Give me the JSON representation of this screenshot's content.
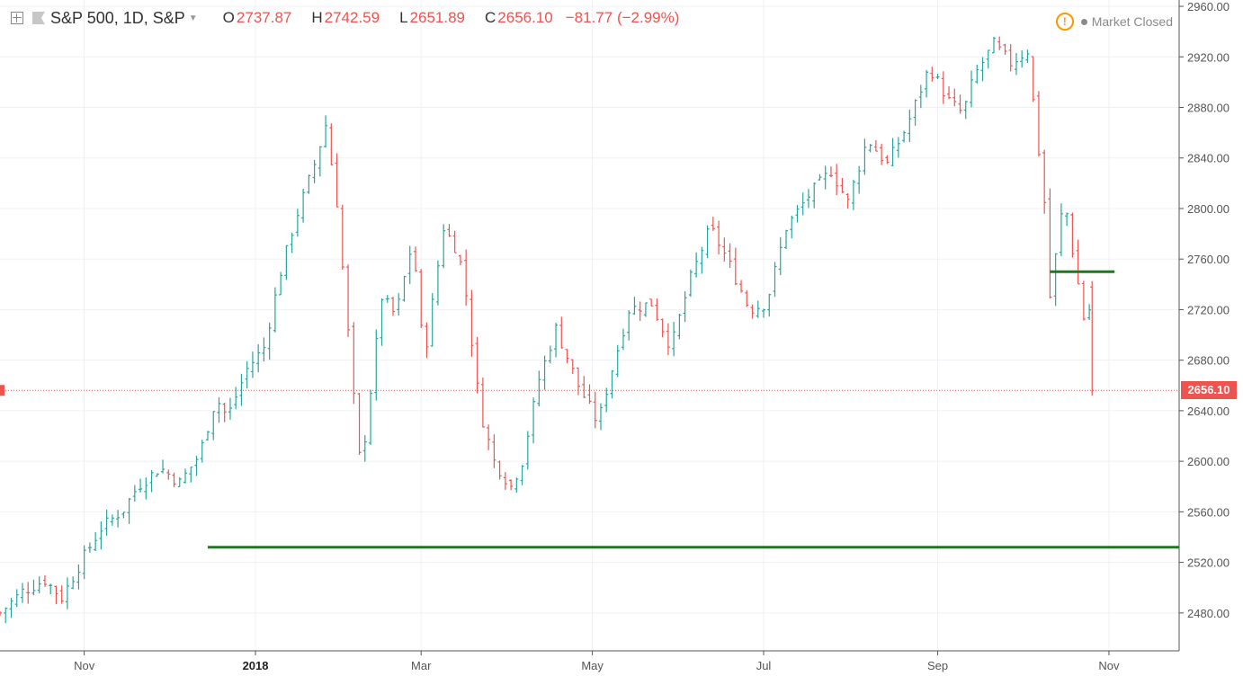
{
  "header": {
    "symbol": "S&P 500, 1D, S&P",
    "o_label": "O",
    "o_value": "2737.87",
    "h_label": "H",
    "h_value": "2742.59",
    "l_label": "L",
    "l_value": "2651.89",
    "c_label": "C",
    "c_value": "2656.10",
    "change": "−81.77 (−2.99%)",
    "market_status": "Market Closed",
    "warning_symbol": "!"
  },
  "last_price_label": "2656.10",
  "colors": {
    "up": "#26a69a",
    "down": "#ef5350",
    "support": "#1b7a1b",
    "grid": "#eef1f4",
    "axis": "#555555"
  },
  "chart_data": {
    "type": "candlestick",
    "title": "S&P 500, 1D, S&P",
    "ylim": [
      2450,
      2965
    ],
    "yticks": [
      "2480.00",
      "2520.00",
      "2560.00",
      "2600.00",
      "2640.00",
      "2680.00",
      "2720.00",
      "2760.00",
      "2800.00",
      "2840.00",
      "2880.00",
      "2920.00",
      "2960.00"
    ],
    "xlim": [
      "2017-10-02",
      "2018-11-26"
    ],
    "xticks": [
      {
        "date": "2017-11-01",
        "label": "Nov"
      },
      {
        "date": "2018-01-01",
        "label": "2018"
      },
      {
        "date": "2018-03-01",
        "label": "Mar"
      },
      {
        "date": "2018-05-01",
        "label": "May"
      },
      {
        "date": "2018-07-01",
        "label": "Jul"
      },
      {
        "date": "2018-09-01",
        "label": "Sep"
      },
      {
        "date": "2018-11-01",
        "label": "Nov"
      }
    ],
    "close_path": [
      [
        "2017-10-02",
        2480
      ],
      [
        "2017-10-10",
        2497
      ],
      [
        "2017-10-18",
        2506
      ],
      [
        "2017-10-24",
        2492
      ],
      [
        "2017-11-01",
        2525
      ],
      [
        "2017-11-07",
        2547
      ],
      [
        "2017-11-15",
        2562
      ],
      [
        "2017-11-20",
        2580
      ],
      [
        "2017-11-28",
        2595
      ],
      [
        "2017-12-05",
        2583
      ],
      [
        "2017-12-12",
        2605
      ],
      [
        "2017-12-18",
        2650
      ],
      [
        "2017-12-22",
        2635
      ],
      [
        "2017-12-29",
        2673
      ],
      [
        "2018-01-04",
        2690
      ],
      [
        "2018-01-10",
        2750
      ],
      [
        "2018-01-15",
        2790
      ],
      [
        "2018-01-22",
        2835
      ],
      [
        "2018-01-26",
        2866
      ],
      [
        "2018-01-30",
        2805
      ],
      [
        "2018-02-05",
        2650
      ],
      [
        "2018-02-08",
        2581
      ],
      [
        "2018-02-09",
        2619
      ],
      [
        "2018-02-15",
        2730
      ],
      [
        "2018-02-20",
        2715
      ],
      [
        "2018-02-26",
        2775
      ],
      [
        "2018-03-02",
        2680
      ],
      [
        "2018-03-09",
        2785
      ],
      [
        "2018-03-13",
        2770
      ],
      [
        "2018-03-16",
        2750
      ],
      [
        "2018-03-22",
        2640
      ],
      [
        "2018-03-27",
        2600
      ],
      [
        "2018-04-02",
        2580
      ],
      [
        "2018-04-06",
        2600
      ],
      [
        "2018-04-12",
        2665
      ],
      [
        "2018-04-18",
        2705
      ],
      [
        "2018-04-26",
        2660
      ],
      [
        "2018-05-03",
        2630
      ],
      [
        "2018-05-07",
        2665
      ],
      [
        "2018-05-14",
        2720
      ],
      [
        "2018-05-22",
        2725
      ],
      [
        "2018-05-29",
        2690
      ],
      [
        "2018-06-05",
        2745
      ],
      [
        "2018-06-12",
        2785
      ],
      [
        "2018-06-18",
        2760
      ],
      [
        "2018-06-26",
        2720
      ],
      [
        "2018-07-02",
        2725
      ],
      [
        "2018-07-09",
        2785
      ],
      [
        "2018-07-17",
        2810
      ],
      [
        "2018-07-25",
        2830
      ],
      [
        "2018-07-31",
        2805
      ],
      [
        "2018-08-07",
        2855
      ],
      [
        "2018-08-14",
        2835
      ],
      [
        "2018-08-21",
        2865
      ],
      [
        "2018-08-29",
        2912
      ],
      [
        "2018-09-05",
        2885
      ],
      [
        "2018-09-10",
        2875
      ],
      [
        "2018-09-14",
        2905
      ],
      [
        "2018-09-21",
        2930
      ],
      [
        "2018-09-27",
        2915
      ],
      [
        "2018-10-03",
        2925
      ],
      [
        "2018-10-05",
        2885
      ],
      [
        "2018-10-10",
        2785
      ],
      [
        "2018-10-11",
        2730
      ],
      [
        "2018-10-16",
        2810
      ],
      [
        "2018-10-19",
        2767
      ],
      [
        "2018-10-24",
        2700
      ],
      [
        "2018-10-25",
        2720
      ],
      [
        "2018-10-26",
        2656
      ]
    ],
    "candle_interval_days": 2,
    "last_bar": {
      "date": "2018-10-26",
      "open": 2737.87,
      "high": 2742.59,
      "low": 2651.89,
      "close": 2656.1
    },
    "last_price": 2656.1,
    "support_lines": [
      {
        "price": 2532,
        "start": "2017-12-15",
        "end": "2018-11-26"
      },
      {
        "price": 2750,
        "start": "2018-10-11",
        "end": "2018-11-03"
      }
    ]
  }
}
